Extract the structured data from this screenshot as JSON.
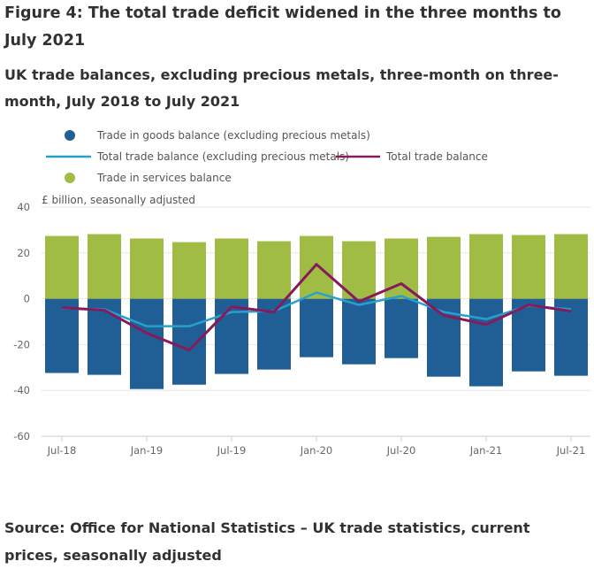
{
  "title": "Figure 4: The total trade deficit widened in the three months to July 2021",
  "subtitle": "UK trade balances, excluding precious metals, three-month on three-month, July 2018 to July 2021",
  "source": "Source: Office for National Statistics – UK trade statistics, current prices, seasonally adjusted",
  "chart_data": {
    "type": "bar",
    "stacked": true,
    "ylabel": "£ billion, seasonally adjusted",
    "ylim": [
      -60,
      40
    ],
    "yticks": [
      40,
      20,
      0,
      -20,
      -40,
      -60
    ],
    "grid": true,
    "legend_position": "top",
    "categories": [
      "Jul-18",
      "Oct-18",
      "Jan-19",
      "Apr-19",
      "Jul-19",
      "Oct-19",
      "Jan-20",
      "Apr-20",
      "Jul-20",
      "Oct-20",
      "Jan-21",
      "Apr-21",
      "Jul-21"
    ],
    "xtick_labels": [
      "Jul-18",
      "Jan-19",
      "Jul-19",
      "Jan-20",
      "Jul-20",
      "Jan-21",
      "Jul-21"
    ],
    "series": [
      {
        "name": "Trade in goods balance (excluding precious metals)",
        "type": "bar",
        "color": "#1f5f95",
        "values": [
          -32.4,
          -33.2,
          -39.4,
          -37.5,
          -32.8,
          -30.9,
          -25.5,
          -28.6,
          -25.9,
          -34.0,
          -38.2,
          -31.7,
          -33.6
        ]
      },
      {
        "name": "Total trade balance (excluding precious metals)",
        "type": "line",
        "color": "#27a0cc",
        "values": [
          -4.2,
          -4.6,
          -12.0,
          -12.0,
          -5.8,
          -5.4,
          2.7,
          -2.7,
          1.2,
          -5.8,
          -8.9,
          -3.1,
          -4.6
        ]
      },
      {
        "name": "Total trade balance",
        "type": "line",
        "color": "#871a5b",
        "values": [
          -3.9,
          -5.0,
          -15.0,
          -22.4,
          -3.5,
          -5.8,
          15.0,
          -1.2,
          6.6,
          -7.3,
          -11.2,
          -2.7,
          -5.4
        ]
      },
      {
        "name": "Trade in services balance",
        "type": "bar",
        "color": "#a0bc45",
        "values": [
          27.4,
          28.2,
          26.3,
          24.7,
          26.3,
          25.1,
          27.4,
          25.1,
          26.3,
          27.0,
          28.2,
          27.8,
          28.2
        ]
      }
    ]
  }
}
